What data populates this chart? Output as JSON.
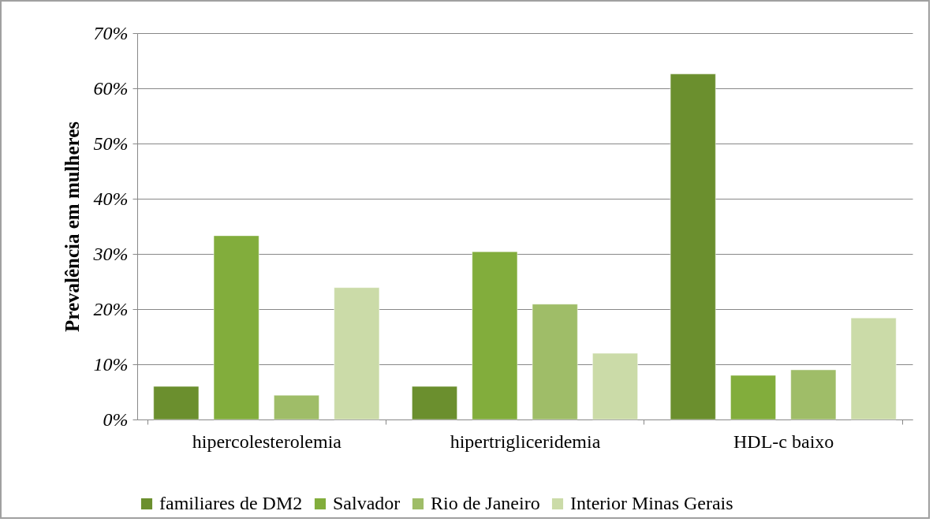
{
  "chart_data": {
    "type": "bar",
    "ylabel": "Prevalência em mulheres",
    "categories": [
      "hipercolesterolemia",
      "hipertrigliceridemia",
      "HDL-c baixo"
    ],
    "series": [
      {
        "name": "familiares de DM2",
        "color": "#6b8f2e",
        "values": [
          6.0,
          6.0,
          62.6
        ]
      },
      {
        "name": "Salvador",
        "color": "#82ad3c",
        "values": [
          33.3,
          30.4,
          8.0
        ]
      },
      {
        "name": "Rio de Janeiro",
        "color": "#9fbd68",
        "values": [
          4.4,
          20.9,
          9.0
        ]
      },
      {
        "name": "Interior Minas Gerais",
        "color": "#cbdba8",
        "values": [
          23.9,
          12.0,
          18.4
        ]
      }
    ],
    "ylim": [
      0,
      70
    ],
    "yticks": [
      {
        "value": 0,
        "label": "0%"
      },
      {
        "value": 10,
        "label": "10%"
      },
      {
        "value": 20,
        "label": "20%"
      },
      {
        "value": 30,
        "label": "30%"
      },
      {
        "value": 40,
        "label": "40%"
      },
      {
        "value": 50,
        "label": "50%"
      },
      {
        "value": 60,
        "label": "60%"
      },
      {
        "value": 70,
        "label": "70%"
      }
    ],
    "grid": "y",
    "legend": "bottom"
  }
}
